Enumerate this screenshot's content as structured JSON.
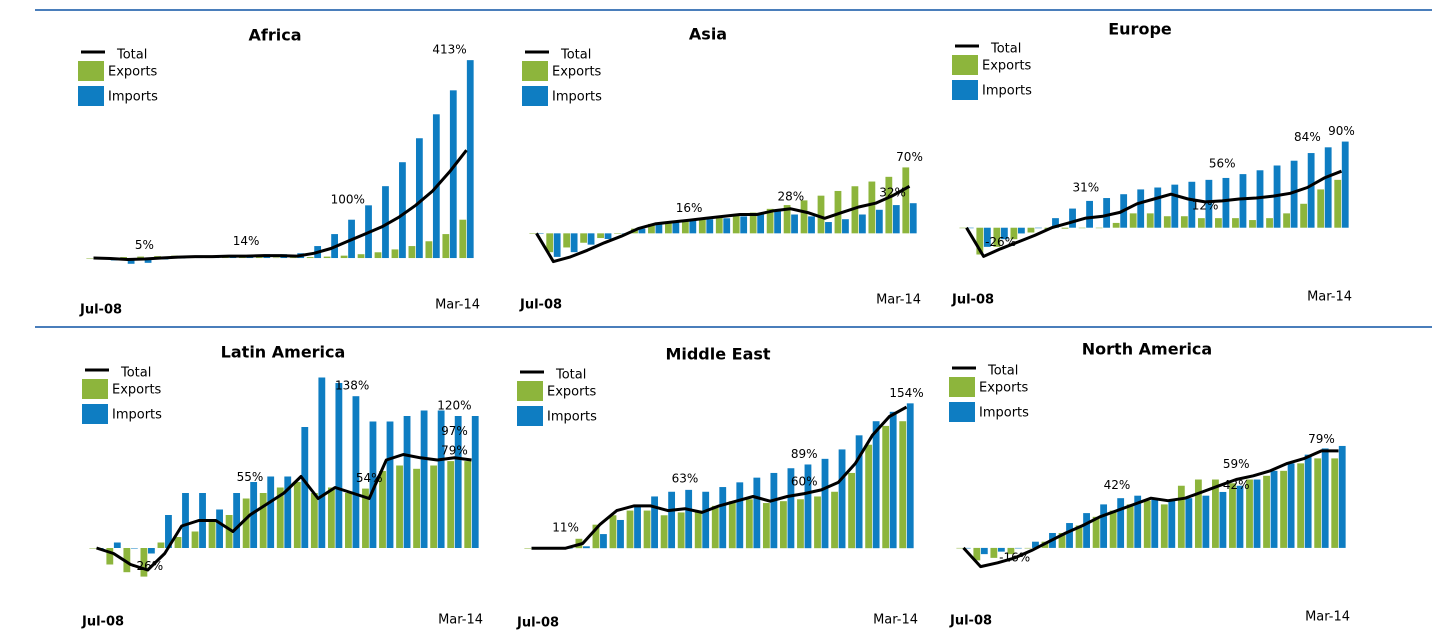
{
  "chart_data": [
    {
      "type": "bar",
      "title": "Africa",
      "categories": [
        "Jul-08",
        null,
        null,
        null,
        null,
        null,
        null,
        null,
        null,
        null,
        null,
        null,
        null,
        null,
        null,
        null,
        null,
        null,
        null,
        null,
        null,
        null,
        "Mar-14"
      ],
      "series": [
        {
          "name": "Total",
          "type": "line",
          "color": "#000000",
          "values": [
            0,
            -1,
            -3,
            -2,
            0,
            2,
            3,
            3,
            4,
            4,
            5,
            5,
            4,
            10,
            20,
            35,
            50,
            65,
            85,
            110,
            140,
            180,
            225
          ]
        },
        {
          "name": "Exports",
          "color": "#8db53c",
          "values": [
            0,
            1,
            2,
            3,
            4,
            5,
            5,
            5,
            4,
            3,
            2,
            1,
            1,
            2,
            3,
            5,
            8,
            12,
            18,
            25,
            35,
            50,
            80
          ]
        },
        {
          "name": "Imports",
          "color": "#0e7dc2",
          "values": [
            0,
            -5,
            -12,
            -10,
            -3,
            0,
            2,
            3,
            5,
            6,
            8,
            8,
            10,
            25,
            50,
            80,
            110,
            150,
            200,
            250,
            300,
            350,
            413
          ]
        }
      ],
      "ylim": [
        -50,
        430
      ],
      "annotations": [
        {
          "label": "5%",
          "value": 5,
          "index": 3
        },
        {
          "label": "14%",
          "value": 14,
          "index": 9
        },
        {
          "label": "100%",
          "value": 100,
          "index": 15
        },
        {
          "label": "413%",
          "value": 413,
          "index": 21
        }
      ]
    },
    {
      "type": "bar",
      "title": "Asia",
      "categories": [
        "Jul-08",
        null,
        null,
        null,
        null,
        null,
        null,
        null,
        null,
        null,
        null,
        null,
        null,
        null,
        null,
        null,
        null,
        null,
        null,
        null,
        null,
        null,
        "Mar-14"
      ],
      "series": [
        {
          "name": "Total",
          "type": "line",
          "color": "#000000",
          "values": [
            0,
            -30,
            -25,
            -18,
            -10,
            -3,
            5,
            10,
            12,
            14,
            16,
            18,
            20,
            20,
            24,
            26,
            22,
            16,
            22,
            28,
            32,
            40,
            50
          ]
        },
        {
          "name": "Exports",
          "color": "#8db53c",
          "values": [
            0,
            -20,
            -15,
            -10,
            -5,
            0,
            5,
            10,
            12,
            14,
            16,
            18,
            20,
            22,
            26,
            30,
            35,
            40,
            45,
            50,
            55,
            60,
            70
          ]
        },
        {
          "name": "Imports",
          "color": "#0e7dc2",
          "values": [
            0,
            -25,
            -20,
            -12,
            -6,
            0,
            5,
            10,
            12,
            14,
            15,
            16,
            18,
            20,
            24,
            20,
            18,
            12,
            15,
            20,
            25,
            30,
            32
          ]
        }
      ],
      "ylim": [
        -40,
        80
      ],
      "annotations": [
        {
          "label": "16%",
          "value": 16,
          "index": 9
        },
        {
          "label": "28%",
          "value": 28,
          "index": 15
        },
        {
          "label": "70%",
          "value": 70,
          "index": 22
        },
        {
          "label": "32%",
          "value": 32,
          "index": 21
        }
      ]
    },
    {
      "type": "bar",
      "title": "Europe",
      "categories": [
        "Jul-08",
        null,
        null,
        null,
        null,
        null,
        null,
        null,
        null,
        null,
        null,
        null,
        null,
        null,
        null,
        null,
        null,
        null,
        null,
        null,
        null,
        null,
        "Mar-14"
      ],
      "series": [
        {
          "name": "Total",
          "type": "line",
          "color": "#000000",
          "values": [
            0,
            -30,
            -22,
            -15,
            -8,
            0,
            5,
            10,
            12,
            16,
            25,
            30,
            35,
            30,
            27,
            28,
            30,
            31,
            33,
            36,
            42,
            52,
            59
          ]
        },
        {
          "name": "Exports",
          "color": "#8db53c",
          "values": [
            0,
            -28,
            -20,
            -12,
            -5,
            -2,
            -1,
            0,
            0,
            5,
            15,
            15,
            12,
            12,
            10,
            10,
            10,
            8,
            10,
            15,
            25,
            40,
            50
          ]
        },
        {
          "name": "Imports",
          "color": "#0e7dc2",
          "values": [
            0,
            -20,
            -12,
            -6,
            0,
            10,
            20,
            28,
            31,
            35,
            40,
            42,
            45,
            48,
            50,
            52,
            56,
            60,
            65,
            70,
            78,
            84,
            90
          ]
        }
      ],
      "ylim": [
        -40,
        100
      ],
      "annotations": [
        {
          "label": "-26%",
          "value": -26,
          "index": 2
        },
        {
          "label": "31%",
          "value": 31,
          "index": 7
        },
        {
          "label": "56%",
          "value": 56,
          "index": 15
        },
        {
          "label": "12%",
          "value": 12,
          "index": 14
        },
        {
          "label": "84%",
          "value": 84,
          "index": 20
        },
        {
          "label": "90%",
          "value": 90,
          "index": 22
        }
      ]
    },
    {
      "type": "bar",
      "title": "Latin America",
      "categories": [
        "Jul-08",
        null,
        null,
        null,
        null,
        null,
        null,
        null,
        null,
        null,
        null,
        null,
        null,
        null,
        null,
        null,
        null,
        null,
        null,
        null,
        null,
        null,
        "Mar-14"
      ],
      "series": [
        {
          "name": "Total",
          "type": "line",
          "color": "#000000",
          "values": [
            0,
            -5,
            -15,
            -20,
            -5,
            20,
            25,
            25,
            15,
            30,
            40,
            50,
            65,
            45,
            55,
            50,
            45,
            80,
            85,
            82,
            80,
            82,
            80
          ]
        },
        {
          "name": "Exports",
          "color": "#8db53c",
          "values": [
            0,
            -15,
            -22,
            -26,
            5,
            10,
            15,
            25,
            30,
            45,
            50,
            55,
            60,
            50,
            55,
            50,
            54,
            70,
            75,
            72,
            75,
            79,
            79
          ]
        },
        {
          "name": "Imports",
          "color": "#0e7dc2",
          "values": [
            0,
            5,
            0,
            -5,
            30,
            50,
            50,
            35,
            50,
            60,
            65,
            65,
            110,
            155,
            150,
            138,
            115,
            115,
            120,
            125,
            125,
            120,
            120
          ]
        }
      ],
      "ylim": [
        -40,
        170
      ],
      "annotations": [
        {
          "label": "-26%",
          "value": -26,
          "index": 3
        },
        {
          "label": "55%",
          "value": 55,
          "index": 9
        },
        {
          "label": "138%",
          "value": 138,
          "index": 15
        },
        {
          "label": "54%",
          "value": 54,
          "index": 16
        },
        {
          "label": "120%",
          "value": 120,
          "index": 21
        },
        {
          "label": "97%",
          "value": 97,
          "index": 21
        },
        {
          "label": "79%",
          "value": 79,
          "index": 21
        }
      ]
    },
    {
      "type": "bar",
      "title": "Middle East",
      "categories": [
        "Jul-08",
        null,
        null,
        null,
        null,
        null,
        null,
        null,
        null,
        null,
        null,
        null,
        null,
        null,
        null,
        null,
        null,
        null,
        null,
        null,
        null,
        null,
        "Mar-14"
      ],
      "series": [
        {
          "name": "Total",
          "type": "line",
          "color": "#000000",
          "values": [
            0,
            0,
            0,
            5,
            25,
            40,
            45,
            45,
            40,
            42,
            38,
            45,
            50,
            55,
            50,
            55,
            58,
            62,
            70,
            90,
            120,
            140,
            150
          ]
        },
        {
          "name": "Exports",
          "color": "#8db53c",
          "values": [
            0,
            0,
            0,
            10,
            25,
            35,
            40,
            40,
            35,
            38,
            40,
            45,
            50,
            52,
            48,
            50,
            52,
            55,
            60,
            80,
            110,
            130,
            135
          ]
        },
        {
          "name": "Imports",
          "color": "#0e7dc2",
          "values": [
            0,
            0,
            0,
            2,
            15,
            30,
            45,
            55,
            60,
            62,
            60,
            65,
            70,
            75,
            80,
            85,
            89,
            95,
            105,
            120,
            135,
            145,
            154
          ]
        }
      ],
      "ylim": [
        -20,
        165
      ],
      "annotations": [
        {
          "label": "11%",
          "value": 11,
          "index": 2
        },
        {
          "label": "63%",
          "value": 63,
          "index": 9
        },
        {
          "label": "89%",
          "value": 89,
          "index": 16
        },
        {
          "label": "60%",
          "value": 60,
          "index": 16
        },
        {
          "label": "154%",
          "value": 154,
          "index": 22
        }
      ]
    },
    {
      "type": "bar",
      "title": "North America",
      "categories": [
        "Jul-08",
        null,
        null,
        null,
        null,
        null,
        null,
        null,
        null,
        null,
        null,
        null,
        null,
        null,
        null,
        null,
        null,
        null,
        null,
        null,
        null,
        null,
        "Mar-14"
      ],
      "series": [
        {
          "name": "Total",
          "type": "line",
          "color": "#000000",
          "values": [
            0,
            -15,
            -12,
            -8,
            -2,
            5,
            12,
            18,
            25,
            30,
            35,
            40,
            38,
            40,
            45,
            50,
            55,
            58,
            62,
            68,
            72,
            78,
            78
          ]
        },
        {
          "name": "Exports",
          "color": "#8db53c",
          "values": [
            0,
            -10,
            -8,
            -5,
            0,
            5,
            12,
            18,
            25,
            30,
            35,
            38,
            35,
            50,
            55,
            55,
            52,
            55,
            58,
            62,
            68,
            72,
            72
          ]
        },
        {
          "name": "Imports",
          "color": "#0e7dc2",
          "values": [
            0,
            -5,
            -3,
            0,
            5,
            12,
            20,
            28,
            35,
            40,
            42,
            40,
            38,
            40,
            42,
            45,
            50,
            55,
            62,
            68,
            75,
            80,
            82
          ]
        }
      ],
      "ylim": [
        -25,
        90
      ],
      "annotations": [
        {
          "label": "-16%",
          "value": -16,
          "index": 3
        },
        {
          "label": "42%",
          "value": 42,
          "index": 9
        },
        {
          "label": "59%",
          "value": 59,
          "index": 16
        },
        {
          "label": "42%",
          "value": 42,
          "index": 16
        },
        {
          "label": "79%",
          "value": 79,
          "index": 21
        }
      ]
    }
  ]
}
